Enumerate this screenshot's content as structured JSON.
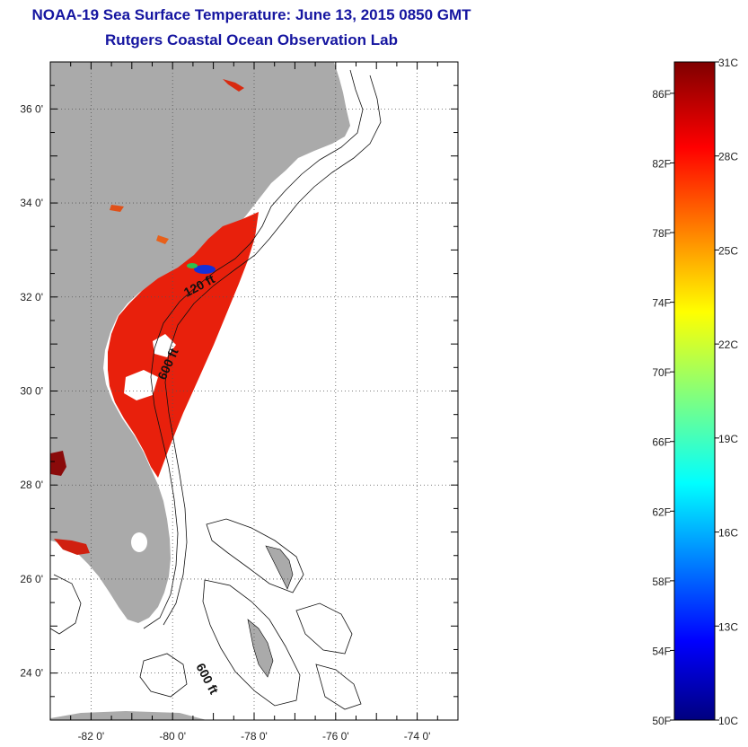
{
  "title": "NOAA-19 Sea Surface Temperature:  June 13, 2015 0850 GMT",
  "subtitle": "Rutgers Coastal Ocean Observation Lab",
  "map": {
    "lat_labels": [
      "36 0'",
      "34 0'",
      "32 0'",
      "30 0'",
      "28 0'",
      "26 0'",
      "24 0'"
    ],
    "lat_values": [
      36,
      34,
      32,
      30,
      28,
      26,
      24
    ],
    "lon_labels": [
      "-82 0'",
      "-80 0'",
      "-78 0'",
      "-76 0'",
      "-74 0'"
    ],
    "lon_values": [
      -82,
      -80,
      -78,
      -76,
      -74
    ],
    "lon_range": [
      -83,
      -73
    ],
    "lat_range": [
      23,
      37
    ],
    "contour_labels": [
      "120 ft",
      "600 ft",
      "600 ft"
    ],
    "colors": {
      "land": "#aaaaaa",
      "ocean_warm": "#e8200c",
      "frame": "#000000"
    }
  },
  "colorbar": {
    "f_labels": [
      "86F",
      "82F",
      "78F",
      "74F",
      "70F",
      "66F",
      "62F",
      "58F",
      "54F",
      "50F"
    ],
    "c_labels": [
      "31C",
      "28C",
      "25C",
      "22C",
      "19C",
      "16C",
      "13C",
      "10C"
    ],
    "c_min": 10,
    "c_max": 31,
    "f_values": [
      86,
      82,
      78,
      74,
      70,
      66,
      62,
      58,
      54,
      50
    ],
    "c_values": [
      31,
      28,
      25,
      22,
      19,
      16,
      13,
      10
    ]
  }
}
